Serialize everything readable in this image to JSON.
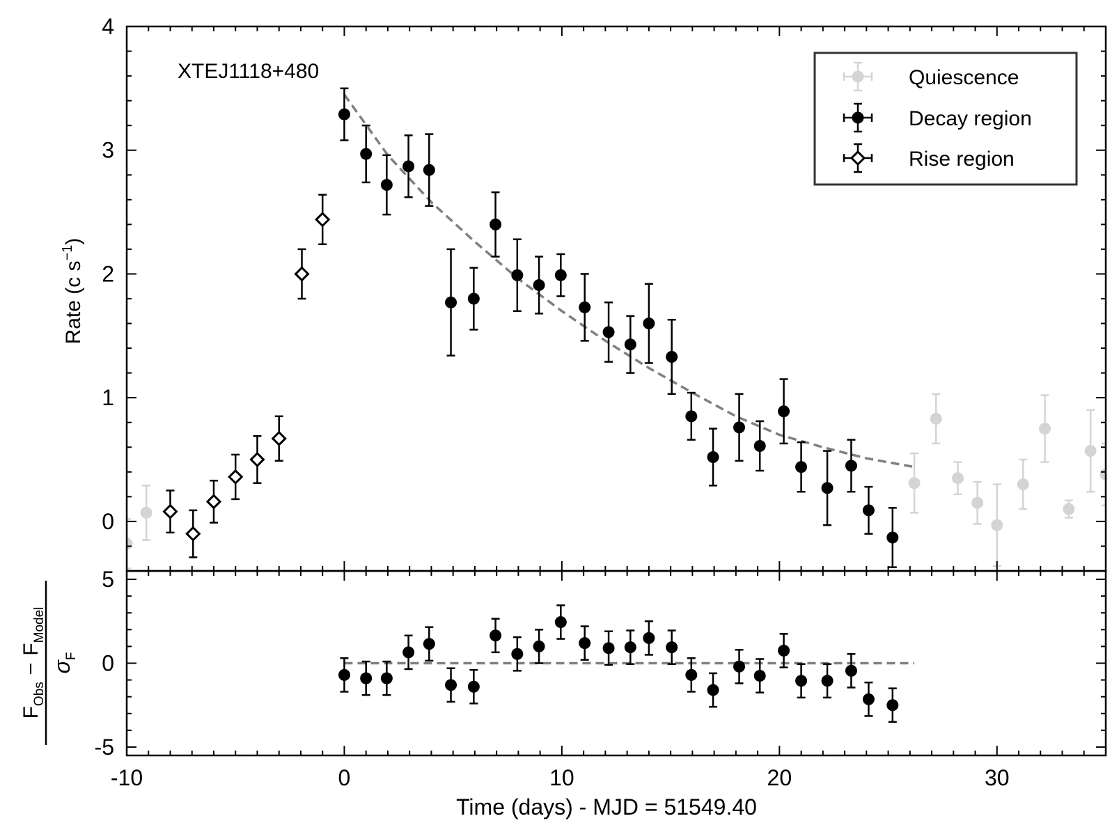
{
  "chart_data": [
    {
      "panel": "main",
      "type": "scatter",
      "annotation": "XTEJ1118+480",
      "ylabel": "Rate (c s",
      "ylabel_sup": "−1",
      "ylabel_close": ")",
      "xlim": [
        -10,
        35
      ],
      "ylim": [
        -0.4,
        4.0
      ],
      "yticks": [
        0,
        1,
        2,
        3,
        4
      ],
      "legend_placement": "top-right",
      "legend": [
        {
          "label": "Quiescence",
          "series": "quiescence"
        },
        {
          "label": "Decay region",
          "series": "decay"
        },
        {
          "label": "Rise region",
          "series": "rise"
        }
      ],
      "series": [
        {
          "key": "quiescence",
          "color": "#d4d4d4",
          "marker": "circle",
          "points": [
            {
              "x": -10.0,
              "y": -0.18,
              "err": 0.2
            },
            {
              "x": -9.1,
              "y": 0.07,
              "err": 0.22
            },
            {
              "x": 26.2,
              "y": 0.31,
              "err": 0.24
            },
            {
              "x": 27.2,
              "y": 0.83,
              "err": 0.2
            },
            {
              "x": 28.2,
              "y": 0.35,
              "err": 0.13
            },
            {
              "x": 29.1,
              "y": 0.15,
              "err": 0.17
            },
            {
              "x": 30.0,
              "y": -0.03,
              "err": 0.33
            },
            {
              "x": 31.2,
              "y": 0.3,
              "err": 0.2
            },
            {
              "x": 32.2,
              "y": 0.75,
              "err": 0.27
            },
            {
              "x": 33.3,
              "y": 0.1,
              "err": 0.07
            },
            {
              "x": 34.3,
              "y": 0.57,
              "err": 0.33
            },
            {
              "x": 35.0,
              "y": 0.38,
              "err": 0.25
            }
          ]
        },
        {
          "key": "decay",
          "color": "#000000",
          "marker": "circle",
          "points": [
            {
              "x": 0.0,
              "y": 3.29,
              "err": 0.21
            },
            {
              "x": 1.0,
              "y": 2.97,
              "err": 0.23
            },
            {
              "x": 1.95,
              "y": 2.72,
              "err": 0.24
            },
            {
              "x": 2.95,
              "y": 2.87,
              "err": 0.25
            },
            {
              "x": 3.9,
              "y": 2.84,
              "err": 0.29
            },
            {
              "x": 4.9,
              "y": 1.77,
              "err": 0.43
            },
            {
              "x": 5.95,
              "y": 1.8,
              "err": 0.25
            },
            {
              "x": 6.95,
              "y": 2.4,
              "err": 0.26
            },
            {
              "x": 7.95,
              "y": 1.99,
              "err": 0.29
            },
            {
              "x": 8.95,
              "y": 1.91,
              "err": 0.23
            },
            {
              "x": 9.95,
              "y": 1.99,
              "err": 0.17
            },
            {
              "x": 11.05,
              "y": 1.73,
              "err": 0.27
            },
            {
              "x": 12.15,
              "y": 1.53,
              "err": 0.24
            },
            {
              "x": 13.15,
              "y": 1.43,
              "err": 0.23
            },
            {
              "x": 14.0,
              "y": 1.6,
              "err": 0.32
            },
            {
              "x": 15.05,
              "y": 1.33,
              "err": 0.3
            },
            {
              "x": 15.95,
              "y": 0.85,
              "err": 0.19
            },
            {
              "x": 16.95,
              "y": 0.52,
              "err": 0.23
            },
            {
              "x": 18.15,
              "y": 0.76,
              "err": 0.27
            },
            {
              "x": 19.1,
              "y": 0.61,
              "err": 0.2
            },
            {
              "x": 20.2,
              "y": 0.89,
              "err": 0.26
            },
            {
              "x": 21.0,
              "y": 0.44,
              "err": 0.2
            },
            {
              "x": 22.2,
              "y": 0.27,
              "err": 0.3
            },
            {
              "x": 23.3,
              "y": 0.45,
              "err": 0.21
            },
            {
              "x": 24.1,
              "y": 0.09,
              "err": 0.19
            },
            {
              "x": 25.2,
              "y": -0.13,
              "err": 0.24
            }
          ]
        },
        {
          "key": "rise",
          "color": "#000000",
          "marker": "diamond",
          "points": [
            {
              "x": -8.0,
              "y": 0.08,
              "err": 0.17
            },
            {
              "x": -6.95,
              "y": -0.1,
              "err": 0.19
            },
            {
              "x": -6.0,
              "y": 0.16,
              "err": 0.17
            },
            {
              "x": -5.0,
              "y": 0.36,
              "err": 0.18
            },
            {
              "x": -4.0,
              "y": 0.5,
              "err": 0.19
            },
            {
              "x": -3.0,
              "y": 0.67,
              "err": 0.18
            },
            {
              "x": -1.95,
              "y": 2.0,
              "err": 0.2
            },
            {
              "x": -1.0,
              "y": 2.44,
              "err": 0.2
            }
          ]
        }
      ],
      "model": {
        "style": "dashed",
        "color": "#808080",
        "points": [
          {
            "x": 0,
            "y": 3.45
          },
          {
            "x": 2,
            "y": 2.96
          },
          {
            "x": 4,
            "y": 2.58
          },
          {
            "x": 6,
            "y": 2.26
          },
          {
            "x": 8,
            "y": 1.96
          },
          {
            "x": 10,
            "y": 1.7
          },
          {
            "x": 12,
            "y": 1.46
          },
          {
            "x": 14,
            "y": 1.24
          },
          {
            "x": 16,
            "y": 1.04
          },
          {
            "x": 18,
            "y": 0.85
          },
          {
            "x": 20,
            "y": 0.7
          },
          {
            "x": 22,
            "y": 0.6
          },
          {
            "x": 24,
            "y": 0.51
          },
          {
            "x": 26.2,
            "y": 0.44
          }
        ]
      }
    },
    {
      "panel": "residuals",
      "type": "scatter",
      "ylabel_F": "F",
      "ylabel_obs": "Obs",
      "ylabel_minus": "−",
      "ylabel_model": "Model",
      "ylabel_sigma": "σ",
      "ylabel_sigma_sub": "F",
      "xlabel": "Time (days) - MJD = 51549.40",
      "xlim": [
        -10,
        35
      ],
      "ylim": [
        -5.5,
        5.5
      ],
      "xticks": [
        -10,
        0,
        10,
        20,
        30
      ],
      "xtick_labels": [
        "-10",
        "0",
        "10",
        "20",
        "30"
      ],
      "yticks": [
        -5,
        0,
        5
      ],
      "ytick_labels": [
        "-5",
        "0",
        "5"
      ],
      "zero_line": {
        "x0": 0,
        "x1": 26.2,
        "y": 0,
        "style": "dashed",
        "color": "#808080"
      },
      "series": [
        {
          "key": "residual",
          "color": "#000000",
          "marker": "circle",
          "points": [
            {
              "x": 0.0,
              "y": -0.7,
              "err": 1.0
            },
            {
              "x": 1.0,
              "y": -0.9,
              "err": 1.0
            },
            {
              "x": 1.95,
              "y": -0.9,
              "err": 1.0
            },
            {
              "x": 2.95,
              "y": 0.65,
              "err": 1.0
            },
            {
              "x": 3.9,
              "y": 1.15,
              "err": 1.0
            },
            {
              "x": 4.9,
              "y": -1.3,
              "err": 1.0
            },
            {
              "x": 5.95,
              "y": -1.4,
              "err": 1.0
            },
            {
              "x": 6.95,
              "y": 1.65,
              "err": 1.0
            },
            {
              "x": 7.95,
              "y": 0.55,
              "err": 1.0
            },
            {
              "x": 8.95,
              "y": 1.0,
              "err": 1.0
            },
            {
              "x": 9.95,
              "y": 2.45,
              "err": 1.0
            },
            {
              "x": 11.05,
              "y": 1.2,
              "err": 1.0
            },
            {
              "x": 12.15,
              "y": 0.9,
              "err": 1.0
            },
            {
              "x": 13.15,
              "y": 0.95,
              "err": 1.0
            },
            {
              "x": 14.0,
              "y": 1.5,
              "err": 1.0
            },
            {
              "x": 15.05,
              "y": 0.95,
              "err": 1.0
            },
            {
              "x": 15.95,
              "y": -0.7,
              "err": 1.0
            },
            {
              "x": 16.95,
              "y": -1.6,
              "err": 1.0
            },
            {
              "x": 18.15,
              "y": -0.2,
              "err": 1.0
            },
            {
              "x": 19.1,
              "y": -0.75,
              "err": 1.0
            },
            {
              "x": 20.2,
              "y": 0.75,
              "err": 1.0
            },
            {
              "x": 21.0,
              "y": -1.05,
              "err": 1.0
            },
            {
              "x": 22.2,
              "y": -1.05,
              "err": 1.0
            },
            {
              "x": 23.3,
              "y": -0.45,
              "err": 1.0
            },
            {
              "x": 24.1,
              "y": -2.15,
              "err": 1.0
            },
            {
              "x": 25.2,
              "y": -2.5,
              "err": 1.0
            }
          ]
        }
      ]
    }
  ]
}
